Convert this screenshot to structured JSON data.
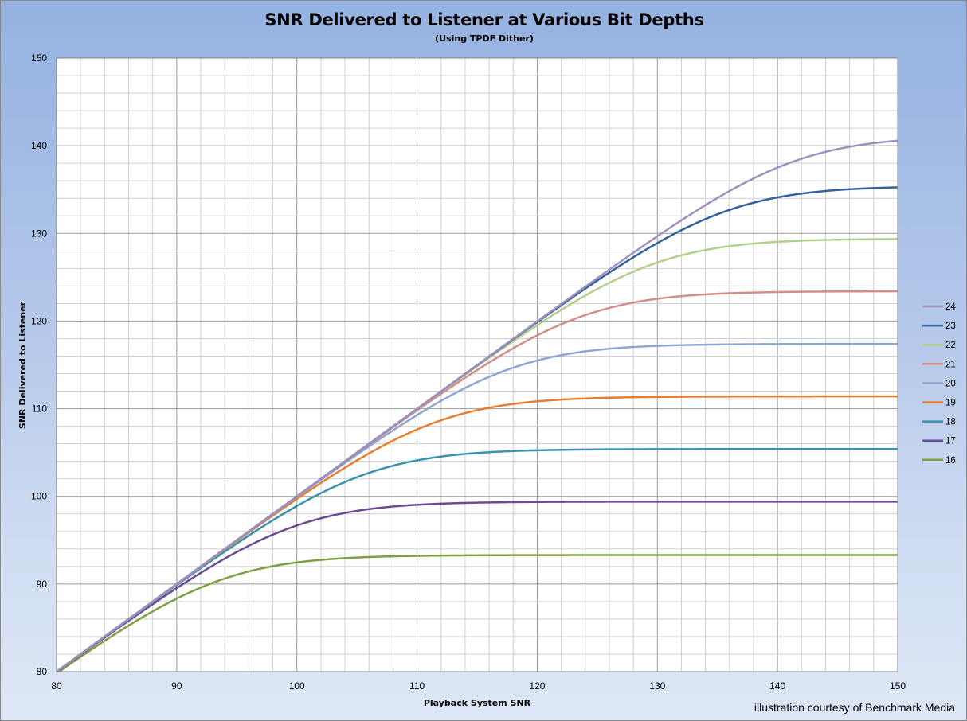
{
  "chart_data": {
    "type": "line",
    "title": "SNR Delivered to Listener at Various Bit Depths",
    "subtitle": "(Using TPDF Dither)",
    "xlabel": "Playback System SNR",
    "ylabel": "SNR Delivered to Listener",
    "xlim": [
      80,
      150
    ],
    "ylim": [
      80,
      150
    ],
    "x_ticks": [
      80,
      90,
      100,
      110,
      120,
      130,
      140,
      150
    ],
    "y_ticks": [
      80,
      90,
      100,
      110,
      120,
      130,
      140,
      150
    ],
    "minor_grid_step": 2,
    "grid": true,
    "legend_position": "right",
    "series": [
      {
        "name": "24",
        "color": "#a190bf",
        "plateau": 141.1
      },
      {
        "name": "23",
        "color": "#33619e",
        "plateau": 135.4
      },
      {
        "name": "22",
        "color": "#b3cf8d",
        "plateau": 129.4
      },
      {
        "name": "21",
        "color": "#d38d8b",
        "plateau": 123.4
      },
      {
        "name": "20",
        "color": "#8fa6d1",
        "plateau": 117.4
      },
      {
        "name": "19",
        "color": "#e57f2f",
        "plateau": 111.4
      },
      {
        "name": "18",
        "color": "#3893ad",
        "plateau": 105.4
      },
      {
        "name": "17",
        "color": "#6b4b95",
        "plateau": 99.4
      },
      {
        "name": "16",
        "color": "#7e9f42",
        "plateau": 93.3
      }
    ]
  },
  "credit": "illustration courtesy of Benchmark Media"
}
